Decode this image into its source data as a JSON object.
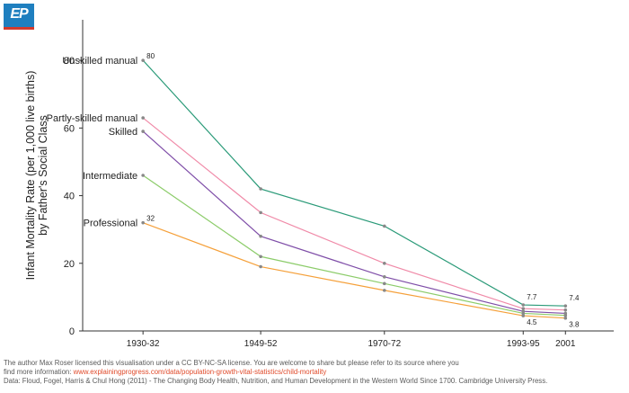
{
  "logo": {
    "text": "EP"
  },
  "chart_data": {
    "type": "line",
    "title": "",
    "ylabel_line1": "Infant Mortality Rate (per 1,000 live births)",
    "ylabel_line2": "by Father's Social Class",
    "xlabel": "",
    "x": [
      "1930-32",
      "1949-52",
      "1970-72",
      "1993-95",
      "2001"
    ],
    "x_positions": [
      1931,
      1950.5,
      1971,
      1994,
      2001
    ],
    "xlim": [
      1921,
      2009
    ],
    "ylim": [
      0,
      92
    ],
    "yticks": [
      0,
      20,
      40,
      60,
      80
    ],
    "grid": false,
    "series": [
      {
        "name": "Unskilled manual",
        "color": "#2a9a78",
        "values": [
          80,
          42,
          31,
          7.7,
          7.4
        ]
      },
      {
        "name": "Partly-skilled manual",
        "color": "#f08aa8",
        "values": [
          63,
          35,
          20,
          6.6,
          6.2
        ]
      },
      {
        "name": "Skilled",
        "color": "#7f4ea8",
        "values": [
          59,
          28,
          16,
          5.8,
          5.2
        ]
      },
      {
        "name": "Intermediate",
        "color": "#8ccc6a",
        "values": [
          46,
          22,
          14,
          5.2,
          4.6
        ]
      },
      {
        "name": "Professional",
        "color": "#f5a03a",
        "values": [
          32,
          19,
          12,
          4.5,
          3.8
        ]
      }
    ],
    "data_labels": [
      {
        "text": "80",
        "series": 0,
        "point": 0
      },
      {
        "text": "32",
        "series": 4,
        "point": 0
      },
      {
        "text": "7.7",
        "series": 0,
        "point": 3
      },
      {
        "text": "4.5",
        "series": 4,
        "point": 3
      },
      {
        "text": "7.4",
        "series": 0,
        "point": 4
      },
      {
        "text": "3.8",
        "series": 4,
        "point": 4
      }
    ]
  },
  "footer": {
    "license_line": "The author Max Roser licensed this visualisation under a CC BY-NC-SA license. You are welcome to share but please refer to its source where you",
    "more_info_prefix": "find more information: ",
    "more_info_link": "www.explainingprogress.com/data/population-growth-vital-statistics/child-mortality",
    "data_source": "Data: Floud, Fogel, Harris & Chul Hong (2011) - The Changing Body Health, Nutrition, and Human Development in the Western World Since 1700. Cambridge University Press."
  }
}
